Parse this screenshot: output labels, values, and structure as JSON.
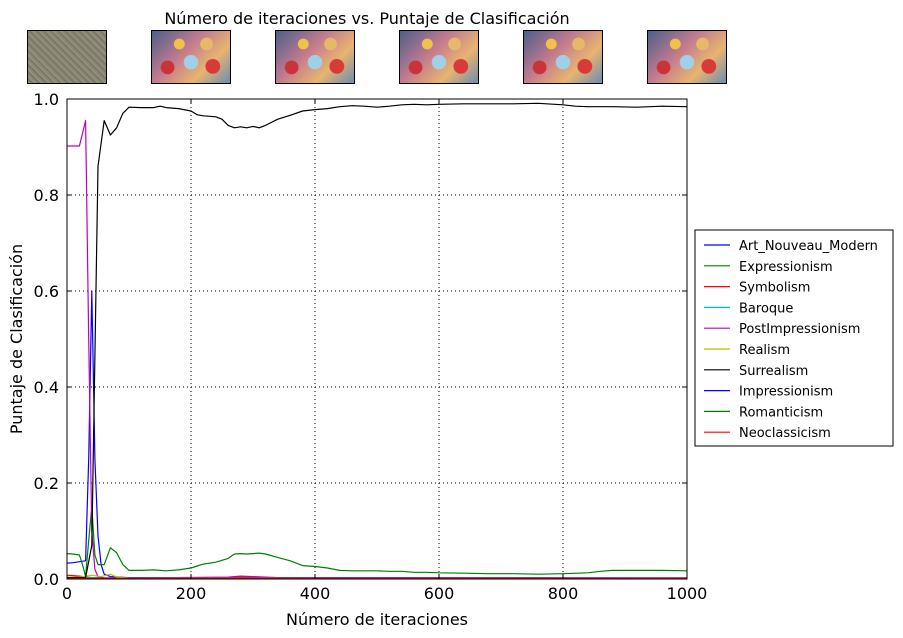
{
  "chart_data": {
    "type": "line",
    "title": "Número de iteraciones vs. Puntaje de Clasificación",
    "xlabel": "Número de iteraciones",
    "ylabel": "Puntaje de Clasificación",
    "xlim": [
      0,
      1000
    ],
    "ylim": [
      0,
      1.0
    ],
    "x_ticks": [
      "0",
      "200",
      "400",
      "600",
      "800",
      "1000"
    ],
    "y_ticks": [
      "0.0",
      "0.2",
      "0.4",
      "0.6",
      "0.8",
      "1.0"
    ],
    "grid": true,
    "legend_position": "right",
    "thumbnails": [
      "noise",
      "art",
      "art",
      "art",
      "art",
      "art"
    ],
    "series": [
      {
        "name": "Art_Nouveau_Modern",
        "color": "#0000ff",
        "points": [
          [
            0,
            0.033
          ],
          [
            10,
            0.034
          ],
          [
            20,
            0.036
          ],
          [
            30,
            0.038
          ],
          [
            35,
            0.25
          ],
          [
            40,
            0.6
          ],
          [
            45,
            0.25
          ],
          [
            50,
            0.09
          ],
          [
            55,
            0.03
          ],
          [
            60,
            0.01
          ],
          [
            70,
            0.005
          ],
          [
            100,
            0.003
          ],
          [
            300,
            0.003
          ],
          [
            1000,
            0.002
          ]
        ]
      },
      {
        "name": "Expressionism",
        "color": "#008000",
        "points": [
          [
            0,
            0.053
          ],
          [
            10,
            0.052
          ],
          [
            20,
            0.05
          ],
          [
            25,
            0.03
          ],
          [
            30,
            0.005
          ],
          [
            35,
            0.08
          ],
          [
            40,
            0.15
          ],
          [
            45,
            0.05
          ],
          [
            50,
            0.03
          ],
          [
            60,
            0.03
          ],
          [
            70,
            0.065
          ],
          [
            80,
            0.055
          ],
          [
            90,
            0.03
          ],
          [
            100,
            0.018
          ],
          [
            120,
            0.018
          ],
          [
            140,
            0.019
          ],
          [
            160,
            0.017
          ],
          [
            180,
            0.019
          ],
          [
            200,
            0.023
          ],
          [
            210,
            0.027
          ],
          [
            220,
            0.031
          ],
          [
            240,
            0.035
          ],
          [
            260,
            0.043
          ],
          [
            270,
            0.052
          ],
          [
            280,
            0.053
          ],
          [
            290,
            0.052
          ],
          [
            300,
            0.053
          ],
          [
            310,
            0.054
          ],
          [
            320,
            0.052
          ],
          [
            340,
            0.045
          ],
          [
            360,
            0.038
          ],
          [
            380,
            0.028
          ],
          [
            400,
            0.026
          ],
          [
            420,
            0.023
          ],
          [
            440,
            0.018
          ],
          [
            460,
            0.017
          ],
          [
            480,
            0.017
          ],
          [
            500,
            0.017
          ],
          [
            520,
            0.016
          ],
          [
            540,
            0.016
          ],
          [
            560,
            0.014
          ],
          [
            580,
            0.014
          ],
          [
            600,
            0.013
          ],
          [
            640,
            0.012
          ],
          [
            680,
            0.011
          ],
          [
            720,
            0.011
          ],
          [
            760,
            0.01
          ],
          [
            800,
            0.011
          ],
          [
            840,
            0.013
          ],
          [
            860,
            0.016
          ],
          [
            880,
            0.018
          ],
          [
            920,
            0.018
          ],
          [
            960,
            0.018
          ],
          [
            1000,
            0.017
          ]
        ]
      },
      {
        "name": "Symbolism",
        "color": "#ff0000",
        "points": [
          [
            0,
            0.008
          ],
          [
            20,
            0.006
          ],
          [
            30,
            0.004
          ],
          [
            40,
            0.003
          ],
          [
            60,
            0.002
          ],
          [
            100,
            0.002
          ],
          [
            260,
            0.003
          ],
          [
            280,
            0.004
          ],
          [
            300,
            0.003
          ],
          [
            400,
            0.002
          ],
          [
            1000,
            0.002
          ]
        ]
      },
      {
        "name": "Baroque",
        "color": "#00bfbf",
        "points": [
          [
            0,
            0.002
          ],
          [
            40,
            0.003
          ],
          [
            60,
            0.001
          ],
          [
            1000,
            0.001
          ]
        ]
      },
      {
        "name": "PostImpressionism",
        "color": "#bf00bf",
        "points": [
          [
            0,
            0.902
          ],
          [
            10,
            0.902
          ],
          [
            20,
            0.902
          ],
          [
            30,
            0.955
          ],
          [
            35,
            0.5
          ],
          [
            40,
            0.1
          ],
          [
            45,
            0.02
          ],
          [
            50,
            0.005
          ],
          [
            60,
            0.002
          ],
          [
            100,
            0.002
          ],
          [
            260,
            0.004
          ],
          [
            280,
            0.006
          ],
          [
            300,
            0.005
          ],
          [
            340,
            0.003
          ],
          [
            1000,
            0.002
          ]
        ]
      },
      {
        "name": "Realism",
        "color": "#bfbf00",
        "points": [
          [
            0,
            0.004
          ],
          [
            20,
            0.004
          ],
          [
            40,
            0.008
          ],
          [
            55,
            0.005
          ],
          [
            70,
            0.01
          ],
          [
            80,
            0.004
          ],
          [
            100,
            0.002
          ],
          [
            1000,
            0.001
          ]
        ]
      },
      {
        "name": "Surrealism",
        "color": "#000000",
        "points": [
          [
            0,
            0.003
          ],
          [
            20,
            0.003
          ],
          [
            30,
            0.003
          ],
          [
            40,
            0.07
          ],
          [
            50,
            0.86
          ],
          [
            60,
            0.955
          ],
          [
            70,
            0.925
          ],
          [
            80,
            0.94
          ],
          [
            90,
            0.97
          ],
          [
            100,
            0.983
          ],
          [
            120,
            0.982
          ],
          [
            140,
            0.982
          ],
          [
            150,
            0.985
          ],
          [
            160,
            0.982
          ],
          [
            180,
            0.98
          ],
          [
            200,
            0.975
          ],
          [
            210,
            0.967
          ],
          [
            220,
            0.965
          ],
          [
            240,
            0.963
          ],
          [
            250,
            0.958
          ],
          [
            260,
            0.945
          ],
          [
            270,
            0.94
          ],
          [
            280,
            0.942
          ],
          [
            290,
            0.94
          ],
          [
            300,
            0.943
          ],
          [
            310,
            0.94
          ],
          [
            320,
            0.945
          ],
          [
            340,
            0.958
          ],
          [
            360,
            0.966
          ],
          [
            380,
            0.975
          ],
          [
            400,
            0.978
          ],
          [
            420,
            0.98
          ],
          [
            440,
            0.984
          ],
          [
            460,
            0.986
          ],
          [
            480,
            0.985
          ],
          [
            500,
            0.983
          ],
          [
            520,
            0.985
          ],
          [
            540,
            0.988
          ],
          [
            560,
            0.989
          ],
          [
            580,
            0.988
          ],
          [
            600,
            0.989
          ],
          [
            640,
            0.99
          ],
          [
            680,
            0.99
          ],
          [
            720,
            0.99
          ],
          [
            760,
            0.991
          ],
          [
            800,
            0.988
          ],
          [
            820,
            0.985
          ],
          [
            840,
            0.984
          ],
          [
            880,
            0.984
          ],
          [
            920,
            0.983
          ],
          [
            960,
            0.985
          ],
          [
            1000,
            0.984
          ]
        ]
      },
      {
        "name": "Impressionism",
        "color": "#0000ff",
        "points": [
          [
            0,
            0.001
          ],
          [
            1000,
            0.001
          ]
        ]
      },
      {
        "name": "Romanticism",
        "color": "#008000",
        "points": [
          [
            0,
            0.001
          ],
          [
            1000,
            0.001
          ]
        ]
      },
      {
        "name": "Neoclassicism",
        "color": "#ff0000",
        "points": [
          [
            0,
            0.001
          ],
          [
            1000,
            0.001
          ]
        ]
      }
    ]
  }
}
